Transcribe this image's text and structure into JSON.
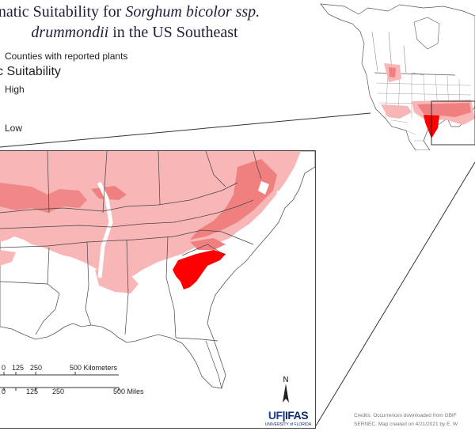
{
  "title": {
    "line1_prefix": "natic Suitability for ",
    "line1_italic": "Sorghum bicolor ssp.",
    "line2_italic": "drummondii",
    "line2_suffix": " in the US Southeast"
  },
  "legend": {
    "counties_label": "Counties with reported plants",
    "heading": "c Suitability",
    "high_label": "High",
    "low_label": "Low"
  },
  "scale_bar": {
    "km_ticks": [
      "0",
      "125",
      "250",
      "500 Kilometers"
    ],
    "mile_ticks": [
      "0",
      "125",
      "250",
      "500 Miles"
    ]
  },
  "north_arrow_label": "N",
  "logo": {
    "text_uf": "UF",
    "text_ifas": "IFAS",
    "subtitle": "UNIVERSITY of FLORIDA"
  },
  "credits": {
    "line1": "Credits: Occurrences downloaded from GBIF",
    "line2": "SERNEC. Map created on 4/21/2021 by E. W"
  },
  "colors": {
    "high": "#ff0000",
    "medium": "#f08080",
    "low": "#f8b6b6",
    "boundary": "#555555",
    "water": "#ffffff"
  }
}
